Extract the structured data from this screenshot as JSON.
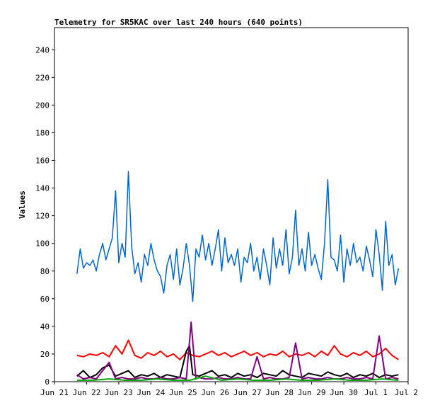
{
  "chart_data": {
    "type": "line",
    "title": "Telemetry for SR5KAC over last 240 hours (640 points)",
    "xlabel": "",
    "ylabel": "Values",
    "ylim": [
      0,
      256
    ],
    "yticks": [
      0,
      20,
      40,
      60,
      80,
      100,
      120,
      140,
      160,
      180,
      200,
      220,
      240
    ],
    "x_ticks": [
      "Jun 21",
      "Jun 22",
      "Jun 23",
      "Jun 24",
      "Jun 25",
      "Jun 26",
      "Jun 27",
      "Jun 28",
      "Jun 29",
      "Jun 30",
      "Jul 1",
      "Jul 2"
    ],
    "xlim": [
      0,
      11
    ],
    "grid": false,
    "legend": "none",
    "series": [
      {
        "color": "#0066cc",
        "x": [
          0.7,
          0.8,
          0.9,
          1.0,
          1.1,
          1.2,
          1.3,
          1.4,
          1.5,
          1.6,
          1.7,
          1.8,
          1.9,
          2.0,
          2.1,
          2.2,
          2.3,
          2.4,
          2.5,
          2.6,
          2.7,
          2.8,
          2.9,
          3.0,
          3.1,
          3.2,
          3.3,
          3.4,
          3.5,
          3.6,
          3.7,
          3.8,
          3.9,
          4.0,
          4.1,
          4.2,
          4.3,
          4.4,
          4.5,
          4.6,
          4.7,
          4.8,
          4.9,
          5.0,
          5.1,
          5.2,
          5.3,
          5.4,
          5.5,
          5.6,
          5.7,
          5.8,
          5.9,
          6.0,
          6.1,
          6.2,
          6.3,
          6.4,
          6.5,
          6.6,
          6.7,
          6.8,
          6.9,
          7.0,
          7.1,
          7.2,
          7.3,
          7.4,
          7.5,
          7.6,
          7.7,
          7.8,
          7.9,
          8.0,
          8.1,
          8.2,
          8.3,
          8.4,
          8.5,
          8.6,
          8.7,
          8.8,
          8.9,
          9.0,
          9.1,
          9.2,
          9.3,
          9.4,
          9.5,
          9.6,
          9.7,
          9.8,
          9.9,
          10.0,
          10.1,
          10.2,
          10.3,
          10.4,
          10.5,
          10.6,
          10.7
        ],
        "y": [
          78,
          96,
          82,
          86,
          84,
          88,
          80,
          92,
          100,
          88,
          96,
          104,
          138,
          86,
          100,
          90,
          152,
          98,
          78,
          86,
          72,
          92,
          84,
          100,
          88,
          80,
          76,
          64,
          84,
          92,
          74,
          96,
          70,
          82,
          100,
          84,
          58,
          96,
          90,
          106,
          88,
          100,
          84,
          96,
          110,
          80,
          104,
          86,
          92,
          84,
          96,
          72,
          90,
          86,
          100,
          80,
          90,
          74,
          96,
          84,
          70,
          104,
          82,
          96,
          84,
          110,
          78,
          90,
          124,
          84,
          96,
          80,
          108,
          84,
          92,
          82,
          74,
          100,
          146,
          90,
          88,
          80,
          106,
          72,
          96,
          84,
          100,
          86,
          90,
          80,
          98,
          88,
          76,
          110,
          92,
          66,
          116,
          84,
          92,
          70,
          82
        ]
      },
      {
        "color": "#ff0000",
        "x": [
          0.7,
          0.9,
          1.1,
          1.3,
          1.5,
          1.7,
          1.9,
          2.1,
          2.3,
          2.5,
          2.7,
          2.9,
          3.1,
          3.3,
          3.5,
          3.7,
          3.9,
          4.1,
          4.3,
          4.5,
          4.7,
          4.9,
          5.1,
          5.3,
          5.5,
          5.7,
          5.9,
          6.1,
          6.3,
          6.5,
          6.7,
          6.9,
          7.1,
          7.3,
          7.5,
          7.7,
          7.9,
          8.1,
          8.3,
          8.5,
          8.7,
          8.9,
          9.1,
          9.3,
          9.5,
          9.7,
          9.9,
          10.1,
          10.3,
          10.5,
          10.7
        ],
        "y": [
          19,
          18,
          20,
          19,
          21,
          18,
          26,
          20,
          30,
          19,
          17,
          21,
          19,
          22,
          18,
          20,
          16,
          21,
          19,
          18,
          20,
          22,
          19,
          21,
          18,
          20,
          22,
          19,
          21,
          18,
          20,
          19,
          22,
          18,
          20,
          19,
          21,
          18,
          22,
          19,
          26,
          20,
          18,
          21,
          19,
          22,
          18,
          20,
          24,
          19,
          16
        ]
      },
      {
        "color": "#000000",
        "x": [
          0.7,
          0.9,
          1.1,
          1.3,
          1.5,
          1.7,
          1.9,
          2.1,
          2.3,
          2.5,
          2.7,
          2.9,
          3.1,
          3.3,
          3.5,
          3.7,
          3.9,
          4.1,
          4.2,
          4.3,
          4.5,
          4.7,
          4.9,
          5.1,
          5.3,
          5.5,
          5.7,
          5.9,
          6.1,
          6.3,
          6.5,
          6.7,
          6.9,
          7.1,
          7.3,
          7.5,
          7.7,
          7.9,
          8.1,
          8.3,
          8.5,
          8.7,
          8.9,
          9.1,
          9.3,
          9.5,
          9.7,
          9.9,
          10.1,
          10.3,
          10.5,
          10.7
        ],
        "y": [
          4,
          8,
          3,
          5,
          10,
          12,
          4,
          6,
          8,
          3,
          5,
          4,
          6,
          3,
          5,
          4,
          3,
          22,
          26,
          5,
          4,
          6,
          8,
          4,
          5,
          3,
          6,
          4,
          5,
          3,
          6,
          5,
          4,
          8,
          5,
          4,
          3,
          6,
          5,
          4,
          7,
          5,
          4,
          6,
          3,
          5,
          4,
          6,
          3,
          5,
          4,
          5
        ]
      },
      {
        "color": "#800080",
        "x": [
          0.7,
          0.9,
          1.1,
          1.3,
          1.5,
          1.7,
          1.9,
          2.1,
          2.3,
          2.5,
          2.7,
          2.9,
          3.1,
          3.3,
          3.5,
          3.7,
          3.9,
          4.1,
          4.25,
          4.4,
          4.5,
          4.7,
          4.9,
          5.1,
          5.3,
          5.5,
          5.7,
          5.9,
          6.1,
          6.3,
          6.5,
          6.7,
          6.9,
          7.1,
          7.3,
          7.5,
          7.7,
          7.9,
          8.1,
          8.3,
          8.5,
          8.7,
          8.9,
          9.1,
          9.3,
          9.5,
          9.7,
          9.9,
          10.1,
          10.3,
          10.5,
          10.7
        ],
        "y": [
          5,
          2,
          3,
          2,
          8,
          14,
          2,
          3,
          2,
          2,
          3,
          2,
          2,
          3,
          2,
          2,
          3,
          2,
          43,
          2,
          3,
          2,
          2,
          3,
          2,
          2,
          3,
          2,
          2,
          18,
          2,
          3,
          2,
          2,
          3,
          28,
          2,
          3,
          2,
          2,
          3,
          2,
          2,
          3,
          2,
          2,
          3,
          2,
          33,
          2,
          3,
          2
        ]
      },
      {
        "color": "#00aa00",
        "x": [
          0.7,
          1.2,
          1.7,
          2.2,
          2.7,
          3.2,
          3.7,
          4.2,
          4.7,
          5.2,
          5.7,
          6.2,
          6.7,
          7.2,
          7.7,
          8.2,
          8.7,
          9.2,
          9.7,
          10.2,
          10.7
        ],
        "y": [
          1,
          1,
          2,
          1,
          1,
          2,
          1,
          1,
          4,
          1,
          2,
          1,
          1,
          2,
          1,
          1,
          2,
          1,
          1,
          2,
          1
        ]
      }
    ]
  }
}
